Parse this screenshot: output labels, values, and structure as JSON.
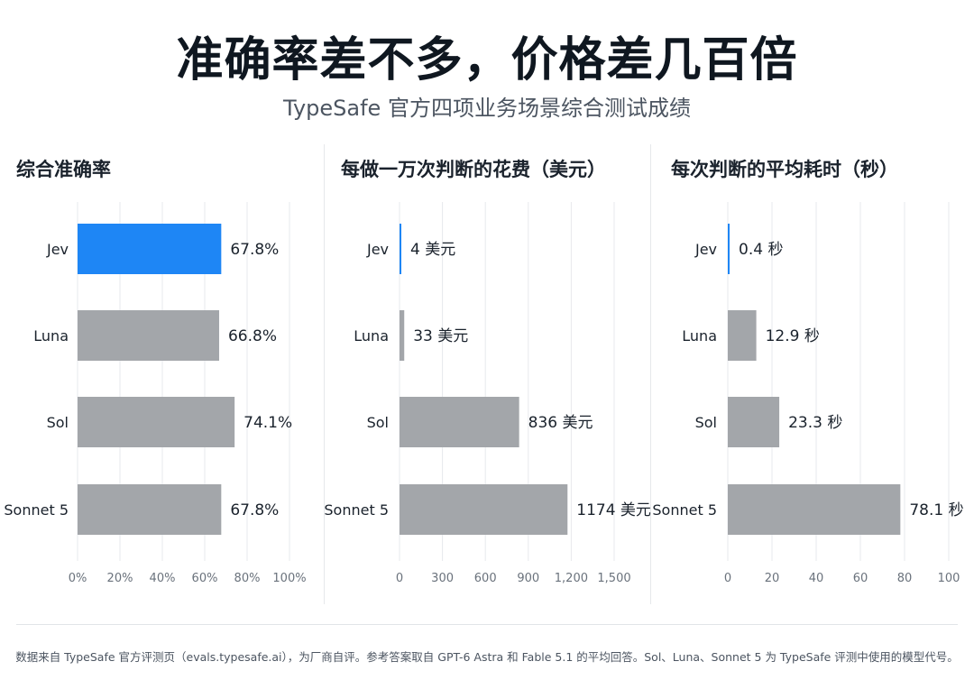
{
  "header": {
    "title": "准确率差不多，价格差几百倍",
    "subtitle": "TypeSafe 官方四项业务场景综合测试成绩"
  },
  "footnote": "数据来自 TypeSafe 官方评测页（evals.typesafe.ai），为厂商自评。参考答案取自 GPT-6 Astra 和 Fable 5.1 的平均回答。Sol、Luna、Sonnet 5 为 TypeSafe 评测中使用的模型代号。",
  "colors": {
    "highlight": "#1e86f5",
    "bar": "#a3a6aa",
    "grid": "#e7e9ec"
  },
  "chart_data": [
    {
      "type": "bar",
      "title": "综合准确率",
      "categories": [
        "Jev",
        "Luna",
        "Sol",
        "Sonnet 5"
      ],
      "values": [
        67.8,
        66.8,
        74.1,
        67.8
      ],
      "value_labels": [
        "67.8%",
        "66.8%",
        "74.1%",
        "67.8%"
      ],
      "xlim": [
        0,
        100
      ],
      "ticks": [
        0,
        20,
        40,
        60,
        80,
        100
      ],
      "tick_labels": [
        "0%",
        "20%",
        "40%",
        "60%",
        "80%",
        "100%"
      ],
      "highlight": "Jev",
      "orientation": "horizontal",
      "grid": true
    },
    {
      "type": "bar",
      "title": "每做一万次判断的花费（美元）",
      "categories": [
        "Jev",
        "Luna",
        "Sol",
        "Sonnet 5"
      ],
      "values": [
        4,
        33,
        836,
        1174
      ],
      "value_labels": [
        "4 美元",
        "33 美元",
        "836 美元",
        "1174 美元"
      ],
      "xlim": [
        0,
        1500
      ],
      "ticks": [
        0,
        300,
        600,
        900,
        1200,
        1500
      ],
      "tick_labels": [
        "0",
        "300",
        "600",
        "900",
        "1,200",
        "1,500"
      ],
      "highlight": "Jev",
      "orientation": "horizontal",
      "grid": true
    },
    {
      "type": "bar",
      "title": "每次判断的平均耗时（秒）",
      "categories": [
        "Jev",
        "Luna",
        "Sol",
        "Sonnet 5"
      ],
      "values": [
        0.4,
        12.9,
        23.3,
        78.1
      ],
      "value_labels": [
        "0.4 秒",
        "12.9 秒",
        "23.3 秒",
        "78.1 秒"
      ],
      "xlim": [
        0,
        100
      ],
      "ticks": [
        0,
        20,
        40,
        60,
        80,
        100
      ],
      "tick_labels": [
        "0",
        "20",
        "40",
        "60",
        "80",
        "100"
      ],
      "highlight": "Jev",
      "orientation": "horizontal",
      "grid": true
    }
  ]
}
